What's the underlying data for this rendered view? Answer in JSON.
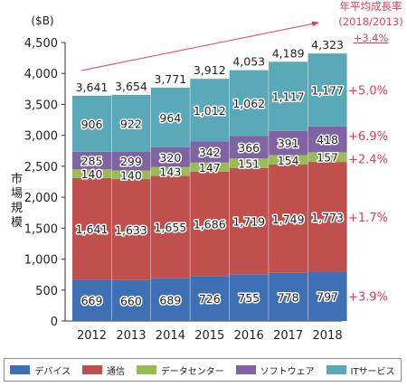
{
  "colors": {
    "device": "#3f6fb4",
    "telecom": "#c0504d",
    "datacenter": "#9bbb59",
    "software": "#8064a2",
    "it_services": "#5aa9b9",
    "annotation": "#e0405a",
    "text": "#222222"
  },
  "chart_data": {
    "type": "bar",
    "stacked": true,
    "unit_label": "($B)",
    "ylabel": "市場規模",
    "ylim": [
      0,
      4500
    ],
    "yticks": [
      "0",
      "500",
      "1,000",
      "1,500",
      "2,000",
      "2,500",
      "3,000",
      "3,500",
      "4,000",
      "4,500"
    ],
    "ytick_values": [
      0,
      500,
      1000,
      1500,
      2000,
      2500,
      3000,
      3500,
      4000,
      4500
    ],
    "categories": [
      "2012",
      "2013",
      "2014",
      "2015",
      "2016",
      "2017",
      "2018"
    ],
    "series": [
      {
        "name": "デバイス",
        "color_key": "device",
        "values": [
          669,
          660,
          689,
          726,
          755,
          778,
          797
        ],
        "labels": [
          "669",
          "660",
          "689",
          "726",
          "755",
          "778",
          "797"
        ]
      },
      {
        "name": "通信",
        "color_key": "telecom",
        "values": [
          1641,
          1633,
          1655,
          1686,
          1719,
          1749,
          1773
        ],
        "labels": [
          "1,641",
          "1,633",
          "1,655",
          "1,686",
          "1,719",
          "1,749",
          "1,773"
        ]
      },
      {
        "name": "データセンター",
        "color_key": "datacenter",
        "values": [
          140,
          140,
          143,
          147,
          151,
          154,
          157
        ],
        "labels": [
          "140",
          "140",
          "143",
          "147",
          "151",
          "154",
          "157"
        ]
      },
      {
        "name": "ソフトウェア",
        "color_key": "software",
        "values": [
          285,
          299,
          320,
          342,
          366,
          391,
          418
        ],
        "labels": [
          "285",
          "299",
          "320",
          "342",
          "366",
          "391",
          "418"
        ]
      },
      {
        "name": "ITサービス",
        "color_key": "it_services",
        "values": [
          906,
          922,
          964,
          1012,
          1062,
          1117,
          1177
        ],
        "labels": [
          "906",
          "922",
          "964",
          "1,012",
          "1,062",
          "1,117",
          "1,177"
        ]
      }
    ],
    "totals": [
      3641,
      3654,
      3771,
      3912,
      4053,
      4189,
      4323
    ],
    "total_labels": [
      "3,641",
      "3,654",
      "3,771",
      "3,912",
      "4,053",
      "4,189",
      "4,323"
    ],
    "cagr_header": [
      "年平均成長率",
      "(2018/2013)"
    ],
    "cagr_total": "+3.4%",
    "cagr": [
      "+3.9%",
      "+1.7%",
      "+2.4%",
      "+6.9%",
      "+5.0%"
    ],
    "grid": false,
    "legend_position": "bottom"
  }
}
